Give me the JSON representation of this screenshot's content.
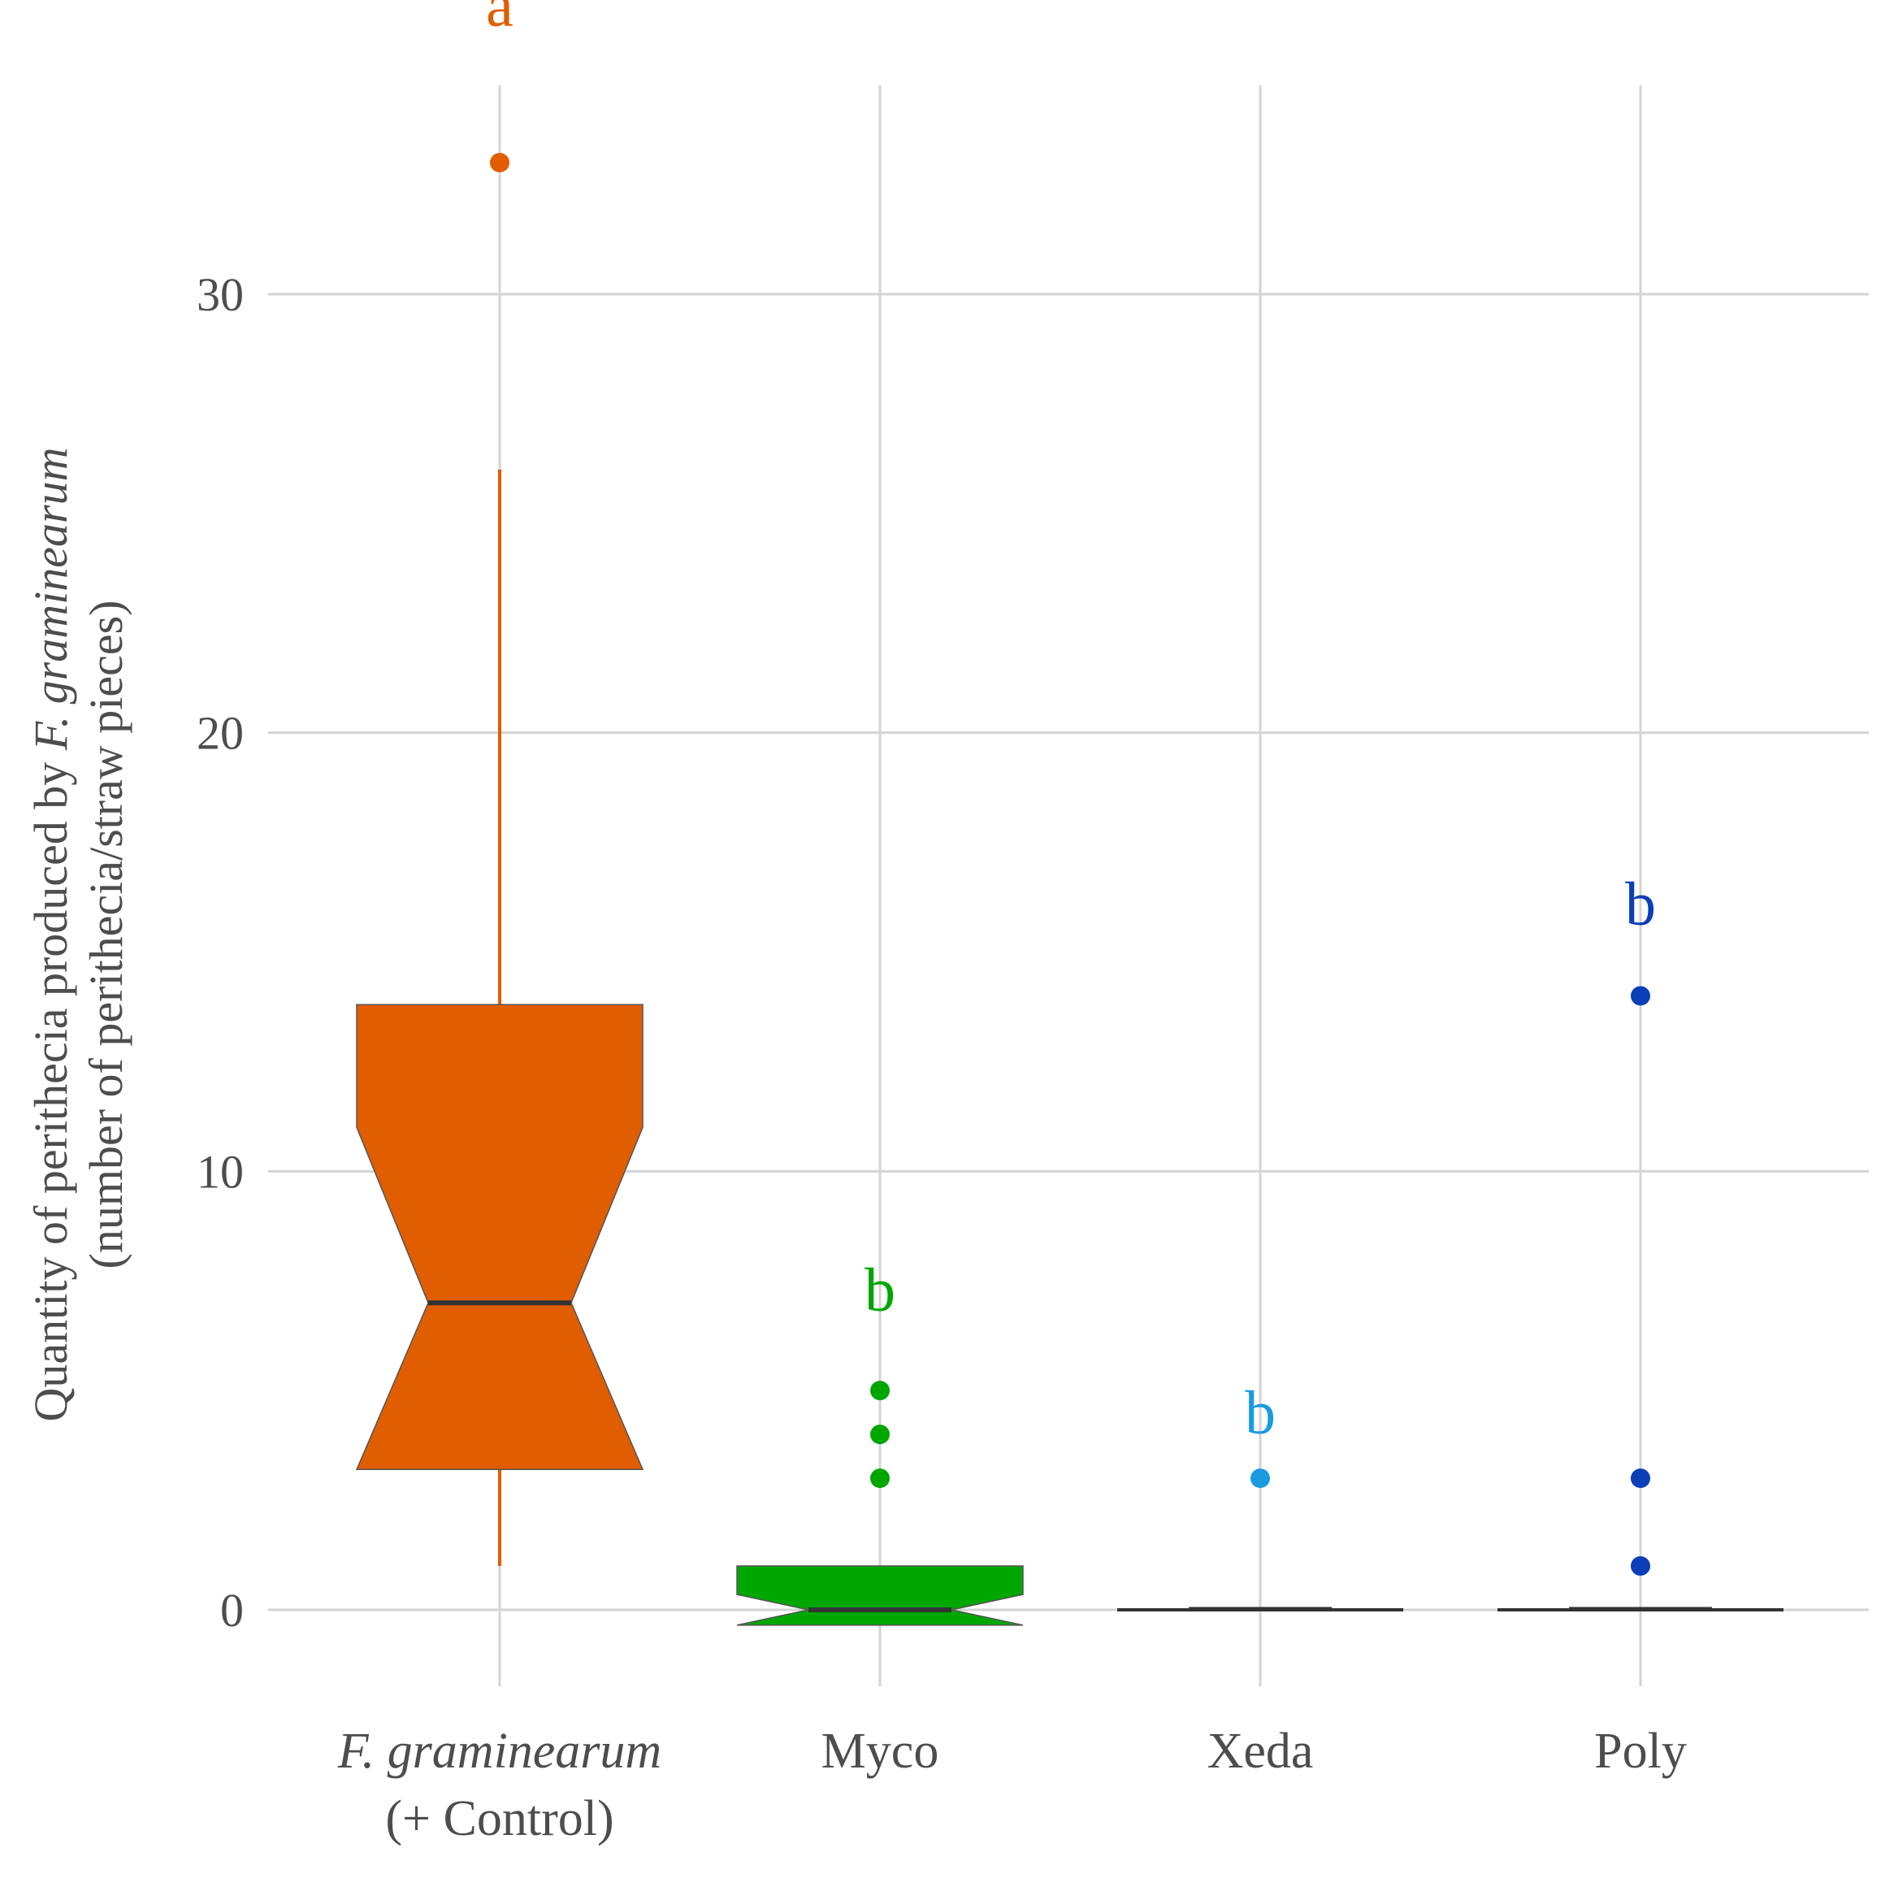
{
  "chart_data": {
    "type": "boxplot",
    "notched": true,
    "ylabel_line1_prefix": "Quantity of perithecia produced by ",
    "ylabel_line1_italic": "F. graminearum",
    "ylabel_line2": "(number of perithecia/straw pieces)",
    "yticks": [
      "0",
      "10",
      "20",
      "30"
    ],
    "ytick_values": [
      0,
      10,
      20,
      30
    ],
    "ylim": [
      -1.5,
      34.5
    ],
    "grid": true,
    "categories": [
      {
        "label_italic": "F. graminearum",
        "label_line2": "(+ Control)",
        "label": ""
      },
      {
        "label_italic": "",
        "label_line2": "",
        "label": "Myco"
      },
      {
        "label_italic": "",
        "label_line2": "",
        "label": "Xeda"
      },
      {
        "label_italic": "",
        "label_line2": "",
        "label": "Poly"
      }
    ],
    "boxes": [
      {
        "q1": 3.2,
        "median": 7.0,
        "q3": 13.8,
        "whisker_low": 1.0,
        "whisker_high": 26.0,
        "notch_low": 3.2,
        "notch_high": 11.0,
        "outliers": [
          33.0
        ],
        "color": "#e05d00",
        "letter": "a",
        "letter_y": 36.6
      },
      {
        "q1": 0,
        "median": 0,
        "q3": 1.0,
        "whisker_low": 0,
        "whisker_high": 1.0,
        "notch_low": -0.35,
        "notch_high": 0.35,
        "outliers": [
          5,
          4,
          3
        ],
        "color": "#00a600",
        "letter": "b",
        "letter_y": 7.3
      },
      {
        "q1": 0,
        "median": 0,
        "q3": 0,
        "whisker_low": 0,
        "whisker_high": 0,
        "notch_low": 0,
        "notch_high": 0,
        "outliers": [
          3
        ],
        "color": "#1a9be0",
        "letter": "b",
        "letter_y": 4.5
      },
      {
        "q1": 0,
        "median": 0,
        "q3": 0,
        "whisker_low": 0,
        "whisker_high": 0,
        "notch_low": 0,
        "notch_high": 0,
        "outliers": [
          14,
          3,
          1
        ],
        "color": "#0a3fb8",
        "letter": "b",
        "letter_y": 16.1
      }
    ]
  }
}
